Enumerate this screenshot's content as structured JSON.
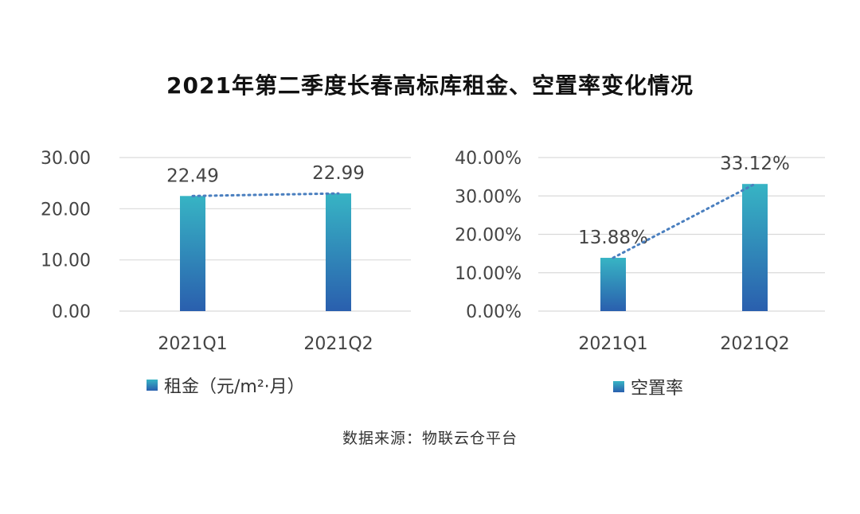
{
  "title": "2021年第二季度长春高标库租金、空置率变化情况",
  "source": "数据来源：物联云仓平台",
  "colors": {
    "bar_top": "#37b4c4",
    "bar_bottom": "#2a5fae",
    "trend": "#4a7fbf",
    "grid": "#d9d9d9"
  },
  "chart_data": [
    {
      "type": "bar",
      "categories": [
        "2021Q1",
        "2021Q2"
      ],
      "series": [
        {
          "name": "租金（元/m²·月）",
          "values": [
            22.49,
            22.99
          ]
        }
      ],
      "data_labels": [
        "22.49",
        "22.99"
      ],
      "y_ticks": [
        "0.00",
        "10.00",
        "20.00",
        "30.00"
      ],
      "ylim": [
        0,
        30
      ],
      "trendline": "dotted",
      "grid": true,
      "legend": "bottom"
    },
    {
      "type": "bar",
      "categories": [
        "2021Q1",
        "2021Q2"
      ],
      "series": [
        {
          "name": "空置率",
          "values": [
            13.88,
            33.12
          ]
        }
      ],
      "data_labels": [
        "13.88%",
        "33.12%"
      ],
      "y_ticks": [
        "0.00%",
        "10.00%",
        "20.00%",
        "30.00%",
        "40.00%"
      ],
      "ylim": [
        0,
        40
      ],
      "trendline": "dotted",
      "grid": true,
      "legend": "bottom"
    }
  ]
}
